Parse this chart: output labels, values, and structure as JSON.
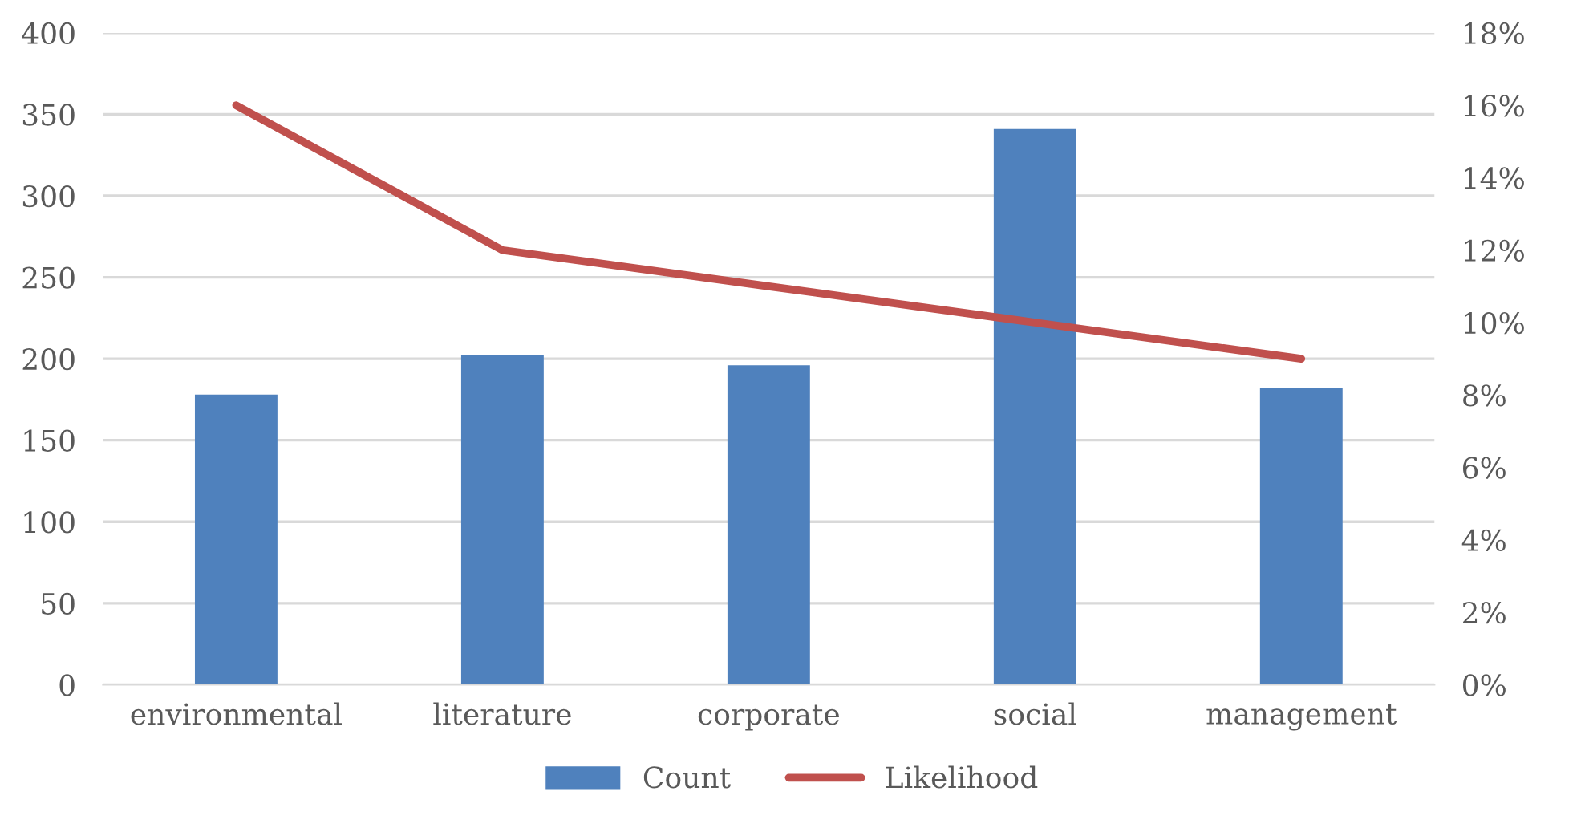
{
  "chart_data": {
    "type": "bar",
    "categories": [
      "environmental",
      "literature",
      "corporate",
      "social",
      "management"
    ],
    "series": [
      {
        "name": "Count",
        "color": "#4f81bd",
        "values": [
          178,
          202,
          196,
          341,
          182
        ]
      },
      {
        "name": "Likelihood",
        "type": "line",
        "axis": "y2",
        "color": "#c0504d",
        "values": [
          16,
          12,
          11,
          10,
          9
        ]
      }
    ],
    "ylim": [
      0,
      400
    ],
    "yticks": [
      0,
      50,
      100,
      150,
      200,
      250,
      300,
      350,
      400
    ],
    "y2lim": [
      0,
      18
    ],
    "y2ticks": [
      {
        "value": 0,
        "label": "0%"
      },
      {
        "value": 2,
        "label": "2%"
      },
      {
        "value": 4,
        "label": "4%"
      },
      {
        "value": 6,
        "label": "6%"
      },
      {
        "value": 8,
        "label": "8%"
      },
      {
        "value": 10,
        "label": "10%"
      },
      {
        "value": 12,
        "label": "12%"
      },
      {
        "value": 14,
        "label": "14%"
      },
      {
        "value": 16,
        "label": "16%"
      },
      {
        "value": 18,
        "label": "18%"
      }
    ],
    "grid": "y",
    "legend": "bottom",
    "marker": "none",
    "line_style": "solid"
  }
}
